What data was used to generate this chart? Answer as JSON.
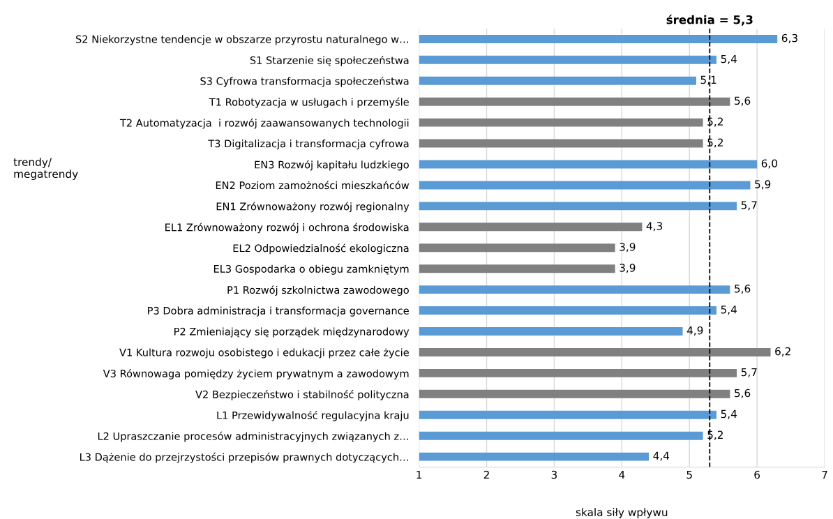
{
  "chart_data": {
    "type": "bar",
    "orientation": "horizontal",
    "xlabel": "skala siły wpływu",
    "ylabel": "trendy/\nmegatrendy",
    "categories": [
      "S2 Niekorzystne tendencje w obszarze przyrostu naturalnego w…",
      "S1 Starzenie się społeczeństwa",
      "S3 Cyfrowa transformacja społeczeństwa",
      "T1 Robotyzacja w usługach i przemyśle",
      "T2 Automatyzacja  i rozwój zaawansowanych technologii",
      "T3 Digitalizacja i transformacja cyfrowa",
      "EN3 Rozwój kapitału ludzkiego",
      "EN2 Poziom zamożności mieszkańców",
      "EN1 Zrównoważony rozwój regionalny",
      "EL1 Zrównoważony rozwój i ochrona środowiska",
      "EL2 Odpowiedzialność ekologiczna",
      "EL3 Gospodarka o obiegu zamkniętym",
      "P1 Rozwój szkolnictwa zawodowego",
      "P3 Dobra administracja i transformacja governance",
      "P2 Zmieniający się porządek międzynarodowy",
      "V1 Kultura rozwoju osobistego i edukacji przez całe życie",
      "V3 Równowaga pomiędzy życiem prywatnym a zawodowym",
      "V2 Bezpieczeństwo i stabilność polityczna",
      "L1 Przewidywalność regulacyjna kraju",
      "L2 Upraszczanie procesów administracyjnych związanych z…",
      "L3 Dążenie do przejrzystości przepisów prawnych dotyczących…"
    ],
    "values": [
      6.3,
      5.4,
      5.1,
      5.6,
      5.2,
      5.2,
      6.0,
      5.9,
      5.7,
      4.3,
      3.9,
      3.9,
      5.6,
      5.4,
      4.9,
      6.2,
      5.7,
      5.6,
      5.4,
      5.2,
      4.4
    ],
    "value_labels": [
      "6,3",
      "5,4",
      "5,1",
      "5,6",
      "5,2",
      "5,2",
      "6,0",
      "5,9",
      "5,7",
      "4,3",
      "3,9",
      "3,9",
      "5,6",
      "5,4",
      "4,9",
      "6,2",
      "5,7",
      "5,6",
      "5,4",
      "5,2",
      "4,4"
    ],
    "colors": [
      "#5b9bd5",
      "#5b9bd5",
      "#5b9bd5",
      "#808080",
      "#808080",
      "#808080",
      "#5b9bd5",
      "#5b9bd5",
      "#5b9bd5",
      "#808080",
      "#808080",
      "#808080",
      "#5b9bd5",
      "#5b9bd5",
      "#5b9bd5",
      "#808080",
      "#808080",
      "#808080",
      "#5b9bd5",
      "#5b9bd5",
      "#5b9bd5"
    ],
    "xlim": [
      1,
      7
    ],
    "xticks": [
      1,
      2,
      3,
      4,
      5,
      6,
      7
    ],
    "grid": "x",
    "ref_lines": [
      {
        "axis": "x",
        "value": 5.3,
        "label": "średnia = 5,3",
        "color": "#000000",
        "line_style": "dashed"
      }
    ]
  }
}
